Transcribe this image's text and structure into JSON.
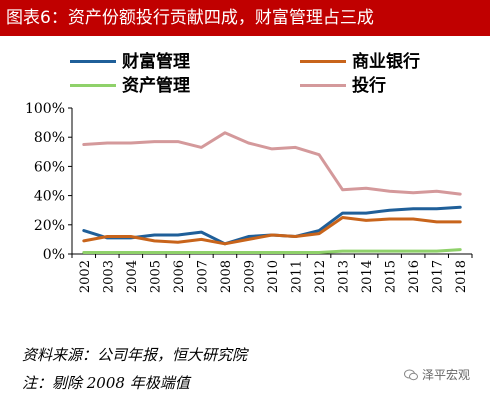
{
  "header": {
    "title": "图表6：资产份额投行贡献四成，财富管理占三成"
  },
  "chart_data": {
    "type": "line",
    "x": [
      "2002",
      "2003",
      "2004",
      "2005",
      "2006",
      "2007",
      "2008",
      "2009",
      "2010",
      "2011",
      "2012",
      "2013",
      "2014",
      "2015",
      "2016",
      "2017",
      "2018"
    ],
    "yticks": [
      "0%",
      "20%",
      "40%",
      "60%",
      "80%",
      "100%"
    ],
    "ylim": [
      0,
      100
    ],
    "legend_position": "top",
    "grid": false,
    "series": [
      {
        "name": "财富管理",
        "color": "#1f5f99",
        "values": [
          16,
          11,
          11,
          13,
          13,
          15,
          7,
          12,
          13,
          12,
          16,
          28,
          28,
          30,
          31,
          31,
          32
        ]
      },
      {
        "name": "商业银行",
        "color": "#c8641b",
        "values": [
          9,
          12,
          12,
          9,
          8,
          10,
          7,
          10,
          13,
          12,
          14,
          25,
          23,
          24,
          24,
          22,
          22
        ]
      },
      {
        "name": "资产管理",
        "color": "#8fd16a",
        "values": [
          1,
          1,
          1,
          1,
          1,
          1,
          1,
          1,
          1,
          1,
          1,
          2,
          2,
          2,
          2,
          2,
          3
        ]
      },
      {
        "name": "投行",
        "color": "#d4999b",
        "values": [
          75,
          76,
          76,
          77,
          77,
          73,
          83,
          76,
          72,
          73,
          68,
          44,
          45,
          43,
          42,
          43,
          41
        ]
      }
    ]
  },
  "notes": {
    "source": "资料来源：公司年报，恒大研究院",
    "remark": "注：剔除 2008 年极端值"
  },
  "watermark": {
    "text": "泽平宏观",
    "icon": "wechat-icon"
  }
}
